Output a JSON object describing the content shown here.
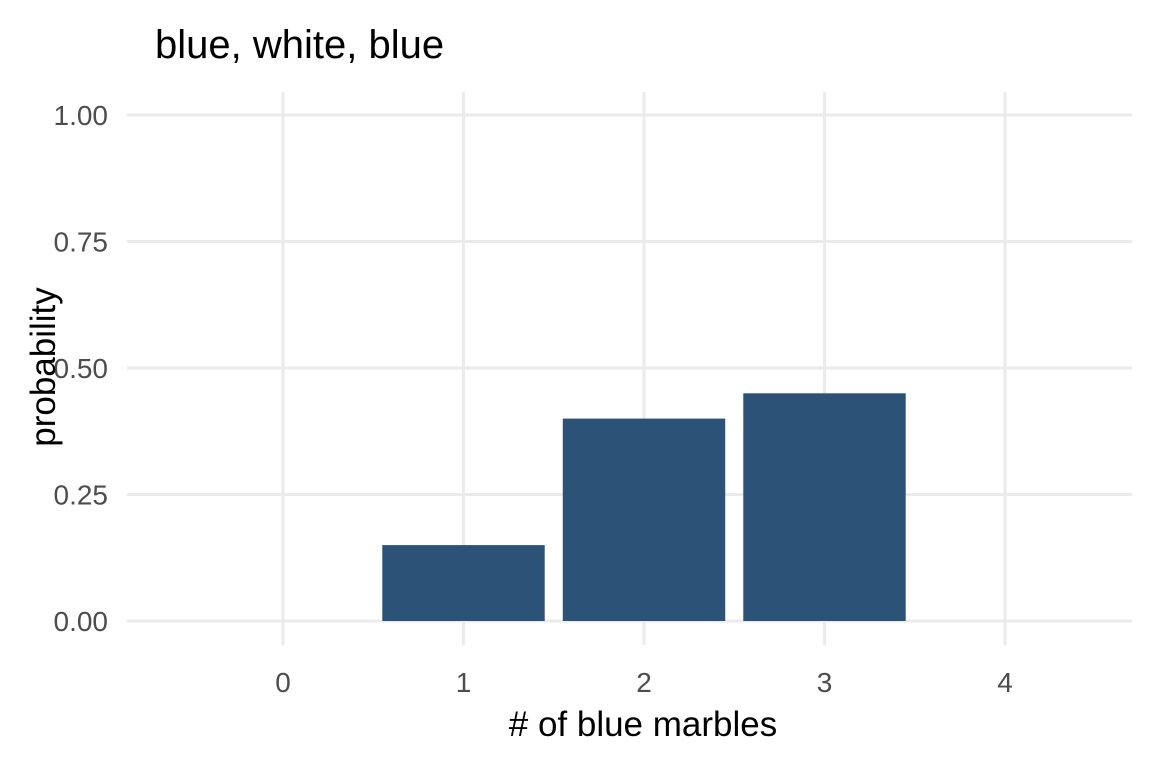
{
  "chart_data": {
    "type": "bar",
    "title": "blue, white, blue",
    "xlabel": "# of blue marbles",
    "ylabel": "probability",
    "x": [
      0,
      1,
      2,
      3,
      4
    ],
    "x_ticks": [
      "0",
      "1",
      "2",
      "3",
      "4"
    ],
    "values": [
      0,
      0.15,
      0.4,
      0.45,
      0
    ],
    "y_ticks": [
      "0.00",
      "0.25",
      "0.50",
      "0.75",
      "1.00"
    ],
    "y_tick_values": [
      0,
      0.25,
      0.5,
      0.75,
      1.0
    ],
    "ylim": [
      0,
      1
    ],
    "xlim": [
      -0.65,
      4.65
    ],
    "grid": true,
    "legend": "none",
    "bar_color": "#2d5278",
    "grid_color": "#ebebeb"
  }
}
